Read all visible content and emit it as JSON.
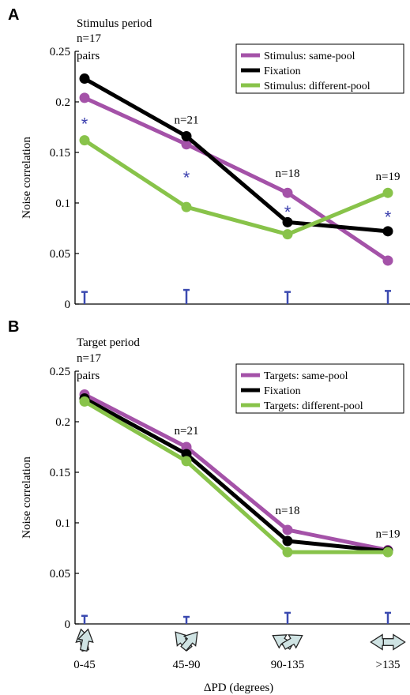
{
  "chart_data": [
    {
      "type": "line",
      "panel_letter": "A",
      "title": "Stimulus period",
      "ylabel": "Noise correlation",
      "categories": [
        "0-45",
        "45-90",
        "90-135",
        ">135"
      ],
      "ylim": [
        0,
        0.25
      ],
      "yticks": [
        "0",
        "0.05",
        "0.1",
        "0.15",
        "0.2",
        "0.25"
      ],
      "series": [
        {
          "name": "Stimulus: same-pool",
          "color": "#a452a8",
          "values": [
            0.204,
            0.158,
            0.11,
            0.043
          ]
        },
        {
          "name": "Fixation",
          "color": "#000000",
          "values": [
            0.223,
            0.166,
            0.081,
            0.072
          ]
        },
        {
          "name": "Stimulus: different-pool",
          "color": "#88c34a",
          "values": [
            0.162,
            0.096,
            0.069,
            0.11
          ]
        }
      ],
      "sample_sizes": [
        "n=17",
        "n=21",
        "n=18",
        "n=19"
      ],
      "pairs_label": "pairs",
      "significance": [
        "*",
        "*",
        "*",
        "*"
      ],
      "significance_y": [
        0.18,
        0.127,
        0.093,
        0.088
      ],
      "error_bars": [
        0.012,
        0.014,
        0.012,
        0.013
      ],
      "legend_position": "top-right",
      "grid": false
    },
    {
      "type": "line",
      "panel_letter": "B",
      "title": "Target period",
      "ylabel": "Noise correlation",
      "xlabel": "ΔPD (degrees)",
      "categories": [
        "0-45",
        "45-90",
        "90-135",
        ">135"
      ],
      "ylim": [
        0,
        0.25
      ],
      "yticks": [
        "0",
        "0.05",
        "0.1",
        "0.15",
        "0.2",
        "0.25"
      ],
      "series": [
        {
          "name": "Targets: same-pool",
          "color": "#a452a8",
          "values": [
            0.227,
            0.175,
            0.093,
            0.073
          ]
        },
        {
          "name": "Fixation",
          "color": "#000000",
          "values": [
            0.223,
            0.168,
            0.082,
            0.072
          ]
        },
        {
          "name": "Targets: different-pool",
          "color": "#88c34a",
          "values": [
            0.22,
            0.161,
            0.071,
            0.071
          ]
        }
      ],
      "sample_sizes": [
        "n=17",
        "n=21",
        "n=18",
        "n=19"
      ],
      "pairs_label": "pairs",
      "error_bars": [
        0.008,
        0.007,
        0.011,
        0.011
      ],
      "legend_position": "top-right",
      "grid": false
    }
  ],
  "colors": {
    "error_bar": "#3b4ab0",
    "arrow_fill": "#cfe3e3",
    "axis": "#000000"
  },
  "icons": [
    "diverging-arrows-icon-0-45",
    "diverging-arrows-icon-45-90",
    "diverging-arrows-icon-90-135",
    "diverging-arrows-icon-135"
  ]
}
